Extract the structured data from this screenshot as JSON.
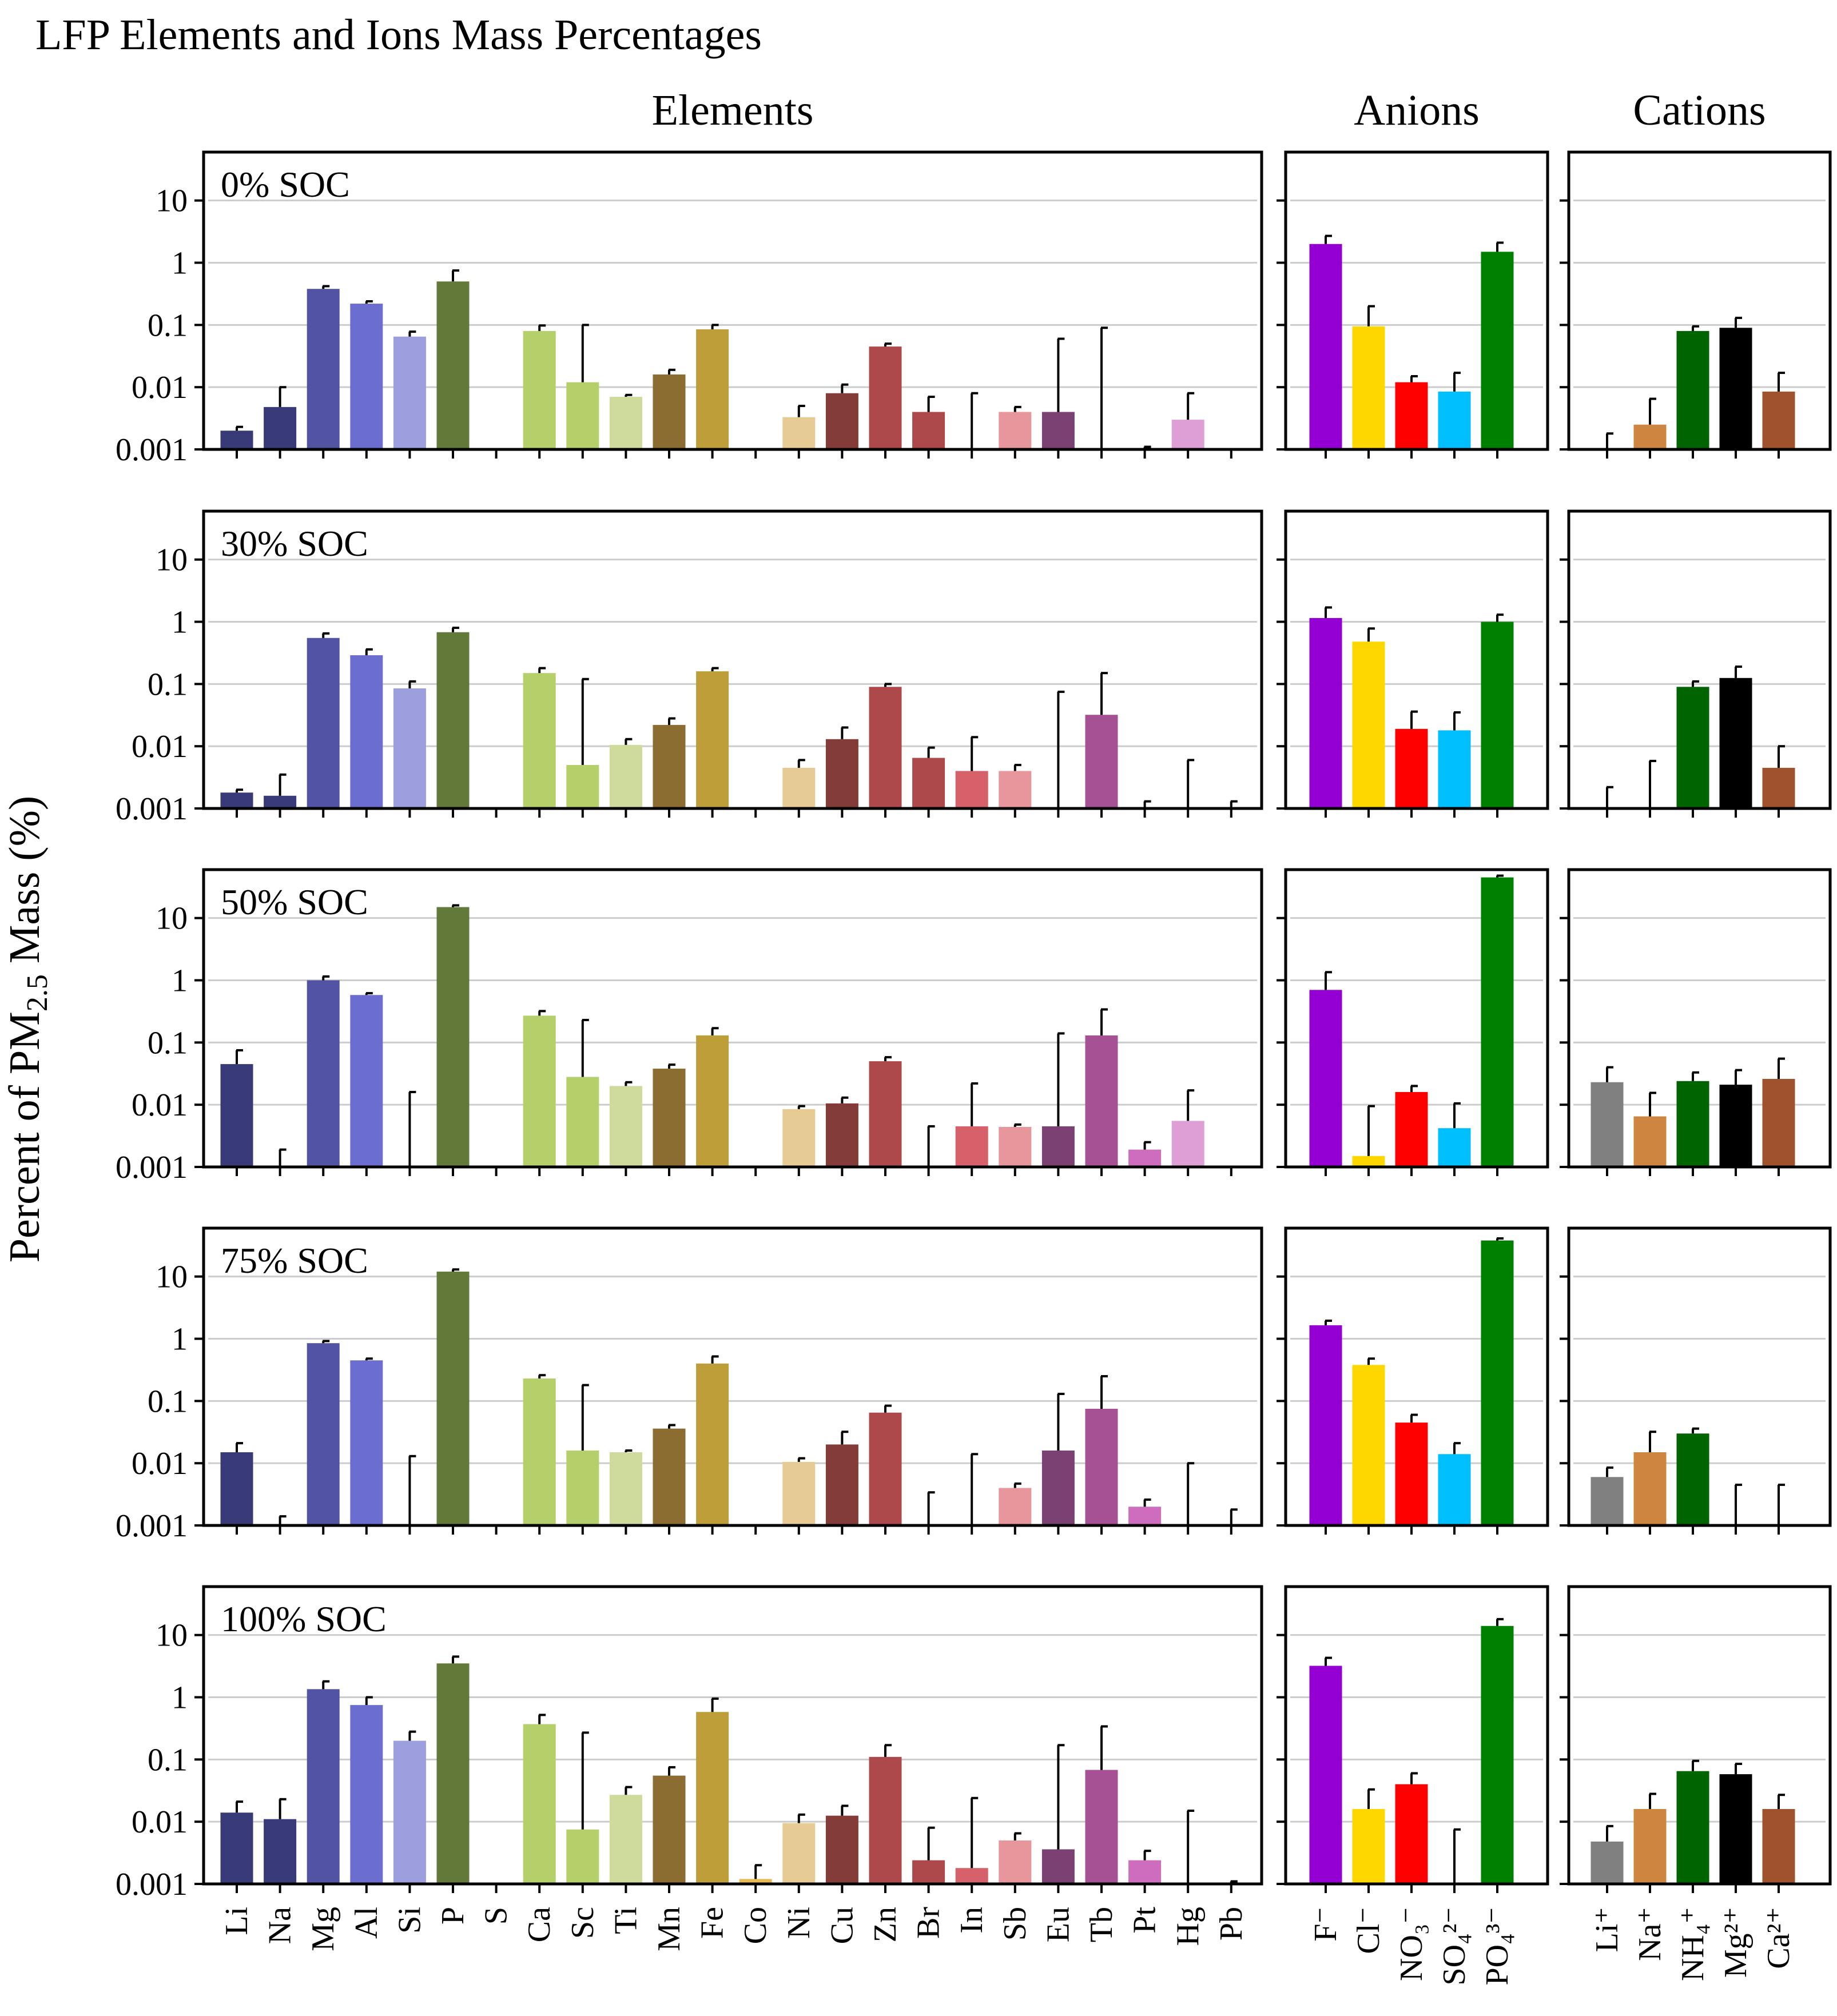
{
  "title": "LFP Elements and Ions Mass Percentages",
  "y_axis_label": {
    "prefix": "Percent of PM",
    "subscript": "2.5",
    "suffix": " Mass (%)"
  },
  "chart_data": {
    "type": "bar",
    "yscale": "log",
    "ylim": [
      0.001,
      60
    ],
    "yticks": [
      0.001,
      0.01,
      0.1,
      1,
      10
    ],
    "ytick_labels": [
      "0.001",
      "0.01",
      "0.1",
      "1",
      "10"
    ],
    "grid": true,
    "groups": [
      {
        "name": "Elements",
        "categories": [
          "Li",
          "Na",
          "Mg",
          "Al",
          "Si",
          "P",
          "S",
          "Ca",
          "Sc",
          "Ti",
          "Mn",
          "Fe",
          "Co",
          "Ni",
          "Cu",
          "Zn",
          "Br",
          "In",
          "Sb",
          "Eu",
          "Tb",
          "Pt",
          "Hg",
          "Pb"
        ],
        "colors": [
          "#393b79",
          "#393b79",
          "#5254a3",
          "#6b6ecf",
          "#9c9ede",
          "#637939",
          "#637939",
          "#b5cf6b",
          "#b5cf6b",
          "#cedb9c",
          "#8c6d31",
          "#bd9e39",
          "#e7ba52",
          "#e7cb94",
          "#843c39",
          "#ad494a",
          "#ad494a",
          "#d6616b",
          "#e7969c",
          "#7b4173",
          "#a55194",
          "#ce6dbd",
          "#de9ed6",
          "#de9ed6"
        ]
      },
      {
        "name": "Anions",
        "categories": [
          "F⁻",
          "Cl⁻",
          "NO₃⁻",
          "SO₄²⁻",
          "PO₄³⁻"
        ],
        "colors": [
          "#9400d3",
          "#ffd700",
          "#ff0000",
          "#00bfff",
          "#008000"
        ]
      },
      {
        "name": "Cations",
        "categories": [
          "Li⁺",
          "Na⁺",
          "NH₄⁺",
          "Mg²⁺",
          "Ca²⁺"
        ],
        "colors": [
          "#808080",
          "#cd853f",
          "#006400",
          "#000000",
          "#a0522d"
        ]
      }
    ],
    "panels": [
      {
        "label": "0% SOC",
        "series": [
          {
            "group": "Elements",
            "values": [
              0.002,
              0.0048,
              0.38,
              0.22,
              0.065,
              0.5,
              null,
              0.08,
              0.012,
              0.007,
              0.016,
              0.085,
              null,
              0.0033,
              0.008,
              0.045,
              0.004,
              null,
              0.004,
              0.004,
              null,
              null,
              0.003,
              null
            ],
            "errors": [
              0.0023,
              0.01,
              0.42,
              0.24,
              0.078,
              0.75,
              null,
              0.098,
              0.1,
              0.0075,
              0.019,
              0.1,
              null,
              0.005,
              0.011,
              0.05,
              0.007,
              0.008,
              0.0048,
              0.06,
              0.09,
              0.0011,
              0.008,
              null
            ]
          },
          {
            "group": "Anions",
            "values": [
              2.0,
              0.095,
              0.012,
              0.0085,
              1.5
            ],
            "errors": [
              2.7,
              0.2,
              0.015,
              0.017,
              2.1
            ]
          },
          {
            "group": "Cations",
            "values": [
              null,
              0.0025,
              0.08,
              0.09,
              0.0085
            ],
            "errors": [
              0.0018,
              0.0065,
              0.095,
              0.13,
              0.017
            ]
          }
        ]
      },
      {
        "label": "30% SOC",
        "series": [
          {
            "group": "Elements",
            "values": [
              0.0018,
              0.0016,
              0.55,
              0.29,
              0.085,
              0.68,
              null,
              0.15,
              0.005,
              0.0105,
              0.022,
              0.16,
              null,
              0.0045,
              0.013,
              0.09,
              0.0065,
              0.004,
              0.004,
              null,
              0.032,
              null,
              null,
              null
            ],
            "errors": [
              0.002,
              0.0035,
              0.65,
              0.36,
              0.11,
              0.8,
              null,
              0.18,
              0.12,
              0.013,
              0.028,
              0.18,
              null,
              0.006,
              0.02,
              0.1,
              0.0095,
              0.014,
              0.005,
              0.075,
              0.15,
              0.0013,
              0.006,
              0.0013
            ]
          },
          {
            "group": "Anions",
            "values": [
              1.15,
              0.48,
              0.019,
              0.018,
              1.0
            ],
            "errors": [
              1.7,
              0.78,
              0.036,
              0.035,
              1.3
            ]
          },
          {
            "group": "Cations",
            "values": [
              null,
              null,
              0.09,
              0.125,
              0.0045
            ],
            "errors": [
              0.0022,
              0.0058,
              0.11,
              0.19,
              0.01
            ]
          }
        ]
      },
      {
        "label": "50% SOC",
        "series": [
          {
            "group": "Elements",
            "values": [
              0.045,
              null,
              1.0,
              0.58,
              null,
              15,
              null,
              0.27,
              0.028,
              0.02,
              0.038,
              0.13,
              null,
              0.0085,
              0.0105,
              0.05,
              null,
              0.0045,
              0.0044,
              0.0045,
              0.13,
              0.0019,
              0.0055,
              null
            ],
            "errors": [
              0.075,
              0.0019,
              1.15,
              0.62,
              0.016,
              16,
              null,
              0.32,
              0.23,
              0.023,
              0.044,
              0.17,
              null,
              0.0095,
              0.013,
              0.058,
              0.0045,
              0.022,
              0.0048,
              0.14,
              0.34,
              0.0025,
              0.017,
              null
            ]
          },
          {
            "group": "Anions",
            "values": [
              0.7,
              0.0015,
              0.016,
              0.0042,
              45
            ],
            "errors": [
              1.35,
              0.0095,
              0.02,
              0.0105,
              48
            ]
          },
          {
            "group": "Cations",
            "values": [
              0.023,
              0.0065,
              0.024,
              0.021,
              0.026
            ],
            "errors": [
              0.04,
              0.0155,
              0.033,
              0.036,
              0.055
            ]
          }
        ]
      },
      {
        "label": "75% SOC",
        "series": [
          {
            "group": "Elements",
            "values": [
              0.015,
              null,
              0.85,
              0.45,
              null,
              12,
              null,
              0.23,
              0.016,
              0.015,
              0.036,
              0.4,
              null,
              0.0105,
              0.02,
              0.065,
              null,
              null,
              0.004,
              0.016,
              0.075,
              0.002,
              null,
              null
            ],
            "errors": [
              0.021,
              0.0014,
              0.92,
              0.48,
              0.013,
              13,
              null,
              0.26,
              0.18,
              0.016,
              0.041,
              0.52,
              null,
              0.012,
              0.032,
              0.084,
              0.0034,
              0.014,
              0.0047,
              0.13,
              0.25,
              0.0026,
              0.01,
              0.0018
            ]
          },
          {
            "group": "Anions",
            "values": [
              1.65,
              0.38,
              0.045,
              0.014,
              38
            ],
            "errors": [
              1.95,
              0.48,
              0.06,
              0.021,
              41
            ]
          },
          {
            "group": "Cations",
            "values": [
              0.006,
              0.015,
              0.03,
              null,
              null
            ],
            "errors": [
              0.0085,
              0.032,
              0.036,
              0.0045,
              0.0045
            ]
          }
        ]
      },
      {
        "label": "100% SOC",
        "series": [
          {
            "group": "Elements",
            "values": [
              0.014,
              0.011,
              1.35,
              0.75,
              0.2,
              3.5,
              null,
              0.37,
              0.0075,
              0.027,
              0.055,
              0.58,
              0.0012,
              0.0095,
              0.0125,
              0.11,
              0.0024,
              0.0018,
              0.005,
              0.0036,
              0.068,
              0.0024,
              null,
              null
            ],
            "errors": [
              0.021,
              0.023,
              1.8,
              1.0,
              0.28,
              4.5,
              null,
              0.52,
              0.27,
              0.036,
              0.075,
              0.95,
              0.002,
              0.013,
              0.018,
              0.17,
              0.008,
              0.024,
              0.0065,
              0.17,
              0.34,
              0.0034,
              0.015,
              0.0011
            ]
          },
          {
            "group": "Anions",
            "values": [
              3.2,
              0.016,
              0.04,
              null,
              14
            ],
            "errors": [
              4.3,
              0.033,
              0.06,
              0.0075,
              18
            ]
          },
          {
            "group": "Cations",
            "values": [
              0.0048,
              0.016,
              0.065,
              0.058,
              0.016
            ],
            "errors": [
              0.0085,
              0.028,
              0.095,
              0.085,
              0.027
            ]
          }
        ]
      }
    ]
  }
}
